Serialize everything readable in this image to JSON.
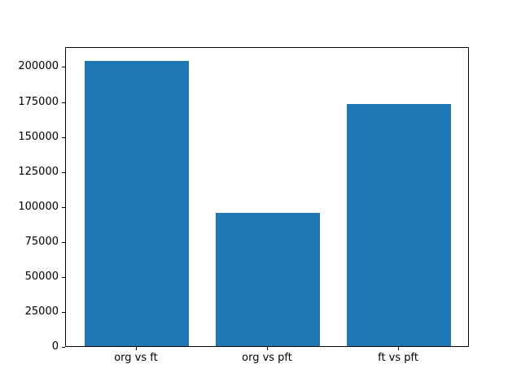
{
  "figure": {
    "background": "#ffffff",
    "spine_color": "#000000",
    "tick_color": "#000000"
  },
  "chart_data": {
    "type": "bar",
    "title": "",
    "xlabel": "",
    "ylabel": "",
    "categories": [
      "org vs ft",
      "org vs pft",
      "ft vs pft"
    ],
    "values": [
      204000,
      95000,
      173000
    ],
    "yticks": [
      0,
      25000,
      50000,
      75000,
      100000,
      125000,
      150000,
      175000,
      200000
    ],
    "ylim": [
      0,
      214200
    ],
    "bar_color": "#1f77b4",
    "grid": false,
    "legend": "none"
  }
}
